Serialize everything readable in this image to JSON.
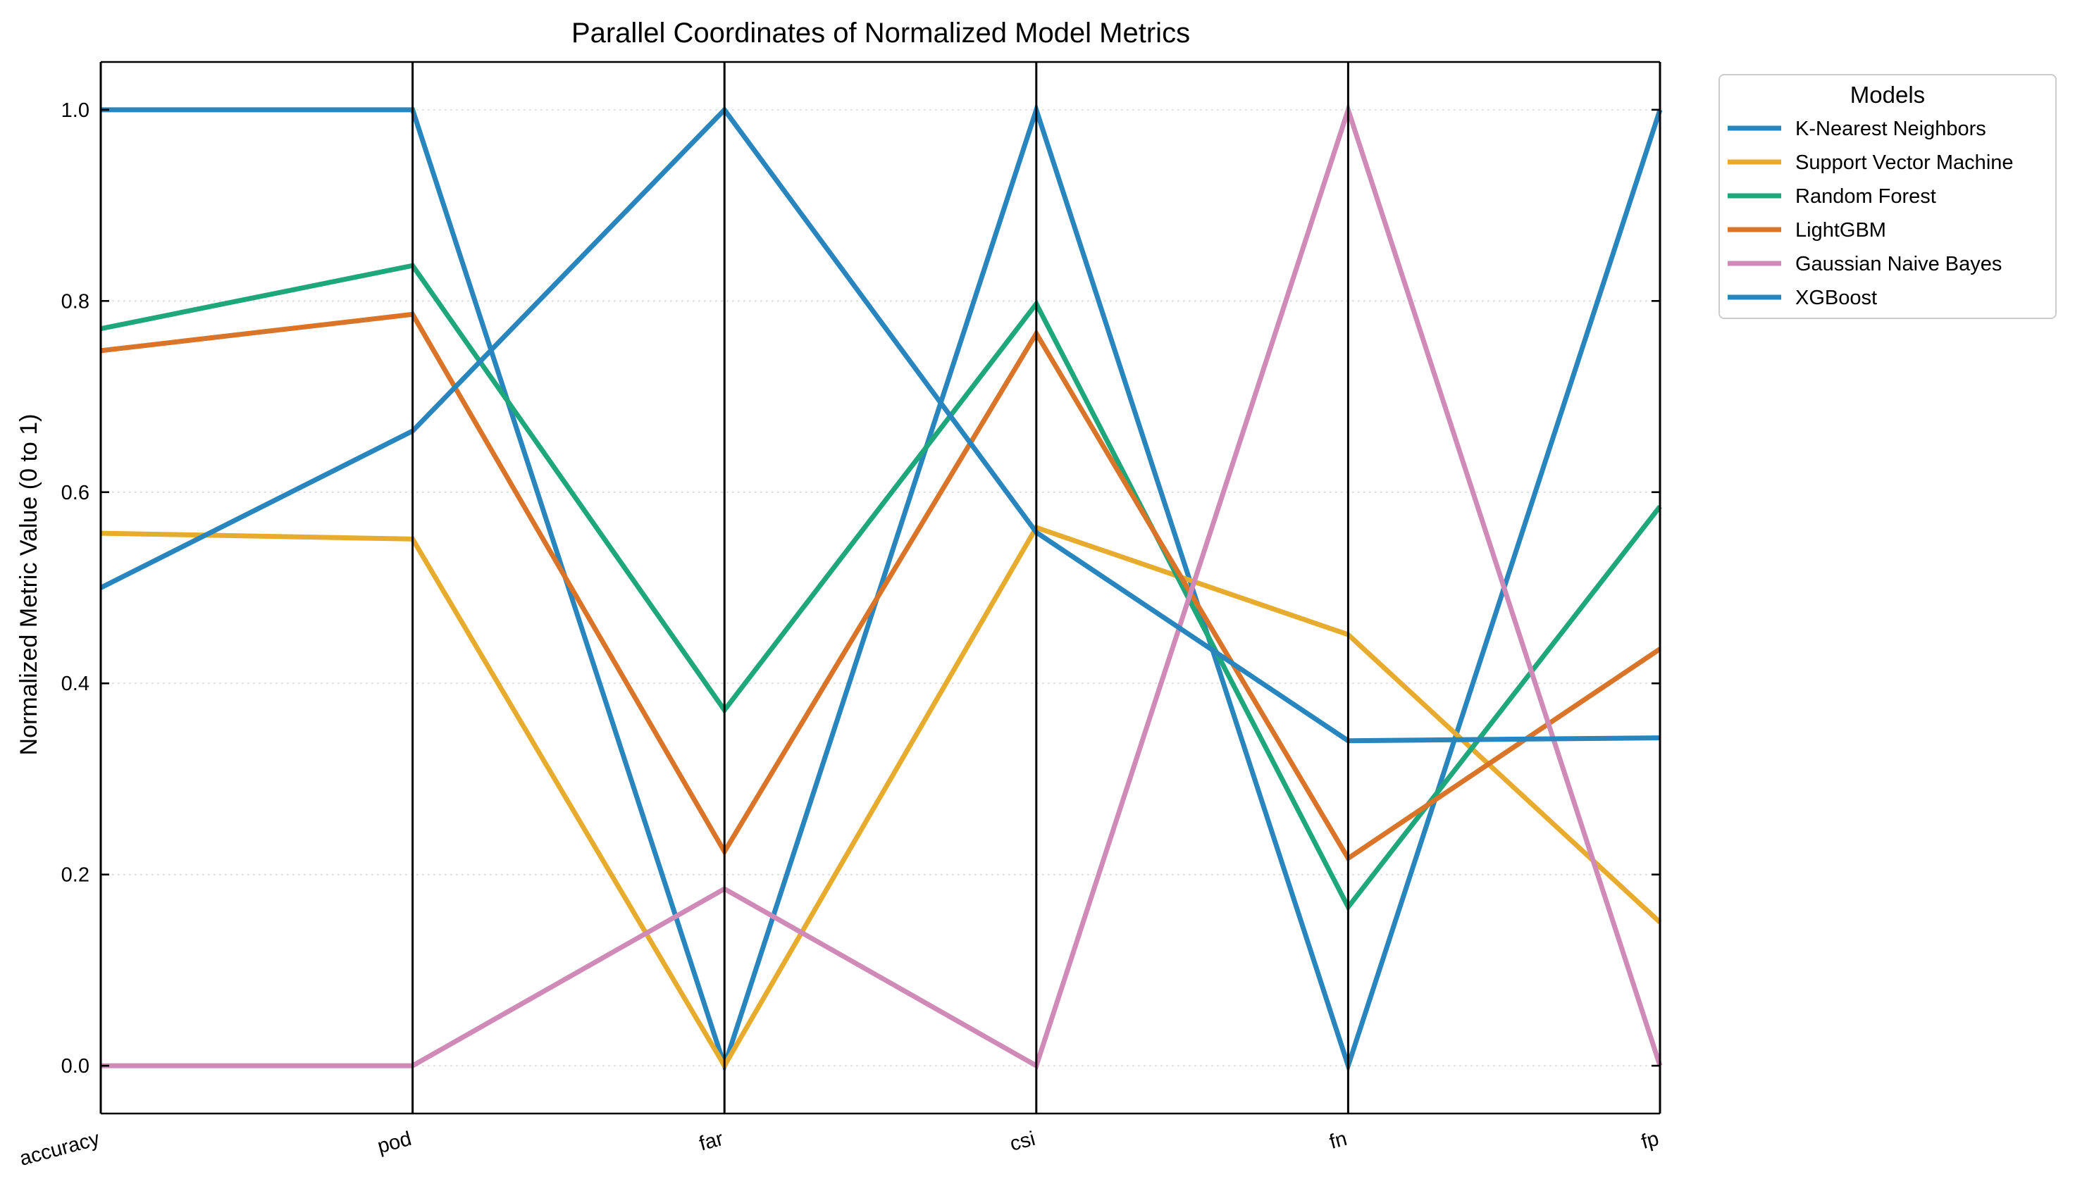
{
  "chart_data": {
    "type": "line",
    "subtype": "parallel-coordinates",
    "title": "Parallel Coordinates of Normalized Model Metrics",
    "xlabel": "",
    "ylabel": "Normalized Metric Value (0 to 1)",
    "categories": [
      "accuracy",
      "pod",
      "far",
      "csi",
      "fn",
      "fp"
    ],
    "ylim": [
      -0.05,
      1.05
    ],
    "yticks": [
      0.0,
      0.2,
      0.4,
      0.6,
      0.8,
      1.0
    ],
    "ytick_labels": [
      "0.0",
      "0.2",
      "0.4",
      "0.6",
      "0.8",
      "1.0"
    ],
    "grid": true,
    "legend": {
      "title": "Models",
      "placement": "outside upper-right"
    },
    "series": [
      {
        "name": "K-Nearest Neighbors",
        "color": "#2885bd",
        "values": [
          1.0,
          1.0,
          0.0,
          1.0,
          0.0,
          1.0
        ]
      },
      {
        "name": "Support Vector Machine",
        "color": "#e7ac2e",
        "values": [
          0.557,
          0.551,
          0.0,
          0.563,
          0.451,
          0.15
        ]
      },
      {
        "name": "Random Forest",
        "color": "#1fa77c",
        "values": [
          0.771,
          0.837,
          0.372,
          0.797,
          0.166,
          0.585
        ]
      },
      {
        "name": "LightGBM",
        "color": "#da7428",
        "values": [
          0.748,
          0.786,
          0.224,
          0.766,
          0.217,
          0.436
        ]
      },
      {
        "name": "Gaussian Naive Bayes",
        "color": "#d08ab8",
        "values": [
          0.0,
          0.0,
          0.185,
          0.0,
          1.0,
          0.0
        ]
      },
      {
        "name": "XGBoost",
        "color": "#2885bd",
        "values": [
          0.5,
          0.664,
          1.0,
          0.558,
          0.34,
          0.343
        ]
      }
    ]
  }
}
